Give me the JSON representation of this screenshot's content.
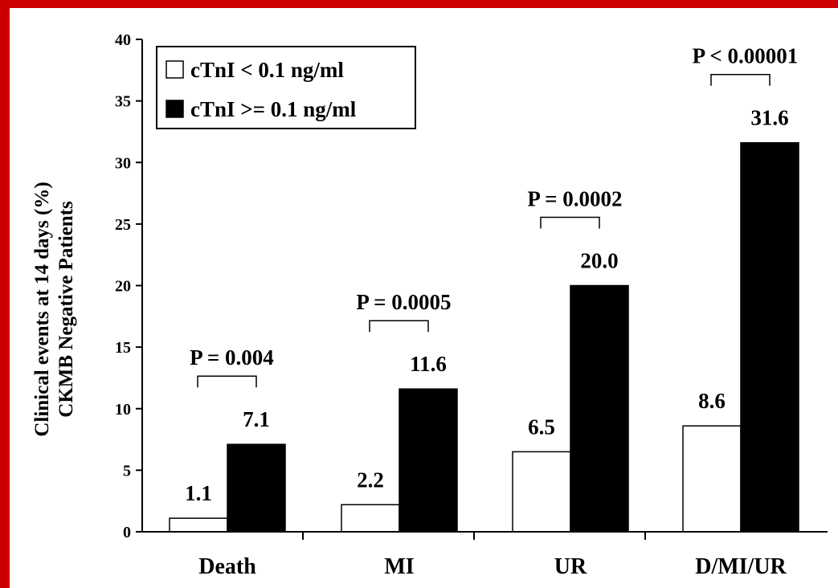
{
  "chart_data": {
    "type": "bar",
    "categories": [
      "Death",
      "MI",
      "UR",
      "D/MI/UR"
    ],
    "series": [
      {
        "name": "cTnI < 0.1 ng/ml",
        "values": [
          1.1,
          2.2,
          6.5,
          8.6
        ],
        "labels": [
          "1.1",
          "2.2",
          "6.5",
          "8.6"
        ],
        "fill": "#ffffff"
      },
      {
        "name": "cTnI >= 0.1 ng/ml",
        "values": [
          7.1,
          11.6,
          20.0,
          31.6
        ],
        "labels": [
          "7.1",
          "11.6",
          "20.0",
          "31.6"
        ],
        "fill": "#000000"
      }
    ],
    "p_values": [
      "P = 0.004",
      "P = 0.0005",
      "P = 0.0002",
      "P < 0.00001"
    ],
    "ylabel": "Clinical events at 14 days (%)",
    "ylabel2": "CKMB Negative Patients",
    "ylim": [
      0,
      40
    ],
    "yticks": [
      "0",
      "5",
      "10",
      "15",
      "20",
      "25",
      "30",
      "35",
      "40"
    ],
    "legend_position": "top-left",
    "grid": false
  },
  "colors": {
    "border": "#cc0000",
    "background": "#ffffff",
    "ink": "#000000"
  }
}
